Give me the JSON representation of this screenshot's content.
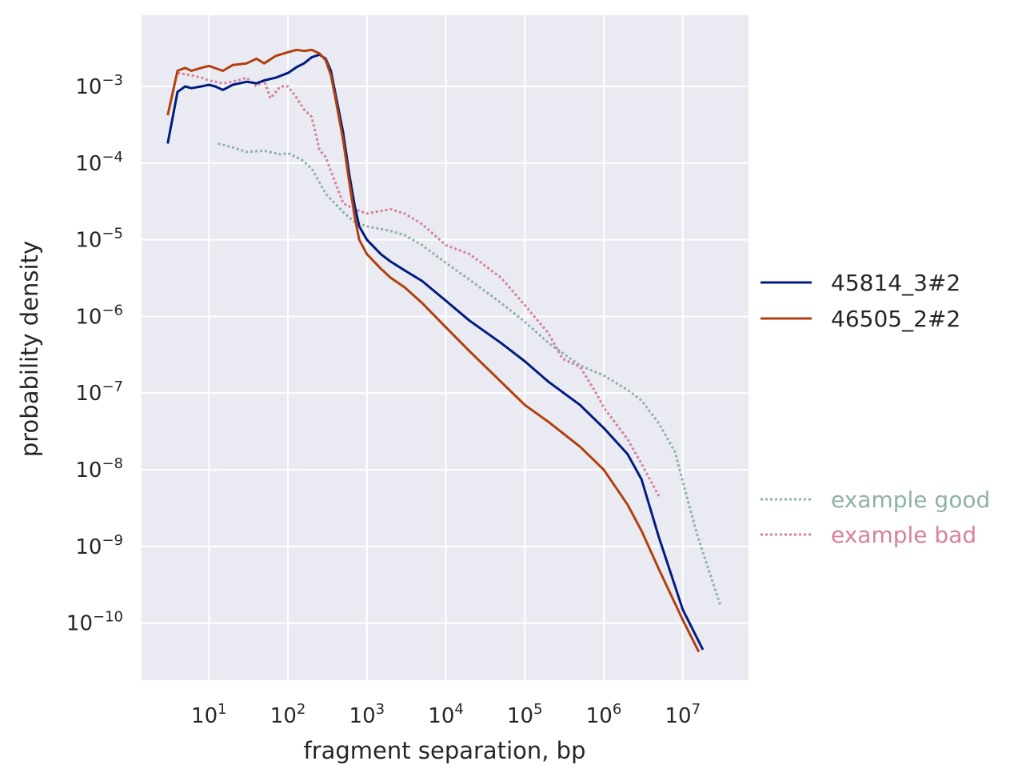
{
  "chart_data": {
    "type": "line",
    "title": "",
    "xlabel": "fragment separation, bp",
    "ylabel": "probability density",
    "xscale": "log",
    "yscale": "log",
    "xlim": [
      1.4,
      68000000
    ],
    "ylim": [
      1.8e-11,
      0.0085
    ],
    "grid": true,
    "x_ticks": [
      {
        "base": "10",
        "exp": "1",
        "value": 10
      },
      {
        "base": "10",
        "exp": "2",
        "value": 100
      },
      {
        "base": "10",
        "exp": "3",
        "value": 1000
      },
      {
        "base": "10",
        "exp": "4",
        "value": 10000
      },
      {
        "base": "10",
        "exp": "5",
        "value": 100000
      },
      {
        "base": "10",
        "exp": "6",
        "value": 1000000
      },
      {
        "base": "10",
        "exp": "7",
        "value": 10000000
      }
    ],
    "y_ticks": [
      {
        "base": "10",
        "exp": "−3",
        "value": 0.001
      },
      {
        "base": "10",
        "exp": "−4",
        "value": 0.0001
      },
      {
        "base": "10",
        "exp": "−5",
        "value": 1e-05
      },
      {
        "base": "10",
        "exp": "−6",
        "value": 1e-06
      },
      {
        "base": "10",
        "exp": "−7",
        "value": 1e-07
      },
      {
        "base": "10",
        "exp": "−8",
        "value": 1e-08
      },
      {
        "base": "10",
        "exp": "−9",
        "value": 1e-09
      },
      {
        "base": "10",
        "exp": "−10",
        "value": 1e-10
      }
    ],
    "legend_main_placement": "right-middle",
    "legend_examples_placement": "right-lower",
    "series": [
      {
        "name": "45814_3#2",
        "group": "main",
        "color": "#001c7f",
        "style": "solid",
        "points": [
          [
            3,
            0.00018
          ],
          [
            4,
            0.00085
          ],
          [
            5,
            0.001
          ],
          [
            6,
            0.00095
          ],
          [
            8,
            0.001
          ],
          [
            10,
            0.00105
          ],
          [
            12,
            0.001
          ],
          [
            15,
            0.0009
          ],
          [
            20,
            0.00105
          ],
          [
            30,
            0.00115
          ],
          [
            40,
            0.0011
          ],
          [
            50,
            0.0012
          ],
          [
            70,
            0.0013
          ],
          [
            100,
            0.0015
          ],
          [
            130,
            0.0018
          ],
          [
            160,
            0.002
          ],
          [
            200,
            0.0024
          ],
          [
            250,
            0.0026
          ],
          [
            300,
            0.0023
          ],
          [
            350,
            0.0016
          ],
          [
            400,
            0.0008
          ],
          [
            500,
            0.00025
          ],
          [
            600,
            7e-05
          ],
          [
            700,
            2.8e-05
          ],
          [
            800,
            1.5e-05
          ],
          [
            1000,
            1e-05
          ],
          [
            1500,
            6.5e-06
          ],
          [
            2000,
            5.2e-06
          ],
          [
            3000,
            4e-06
          ],
          [
            5000,
            2.9e-06
          ],
          [
            10000,
            1.6e-06
          ],
          [
            20000,
            8.8e-07
          ],
          [
            50000,
            4.5e-07
          ],
          [
            100000,
            2.6e-07
          ],
          [
            200000,
            1.4e-07
          ],
          [
            500000,
            7e-08
          ],
          [
            1000000,
            3.5e-08
          ],
          [
            2000000,
            1.6e-08
          ],
          [
            3000000,
            7.5e-09
          ],
          [
            5000000,
            1.3e-09
          ],
          [
            10000000,
            1.5e-10
          ],
          [
            18000000,
            4.5e-11
          ]
        ]
      },
      {
        "name": "46505_2#2",
        "group": "main",
        "color": "#b1400d",
        "style": "solid",
        "points": [
          [
            3,
            0.00042
          ],
          [
            4,
            0.0016
          ],
          [
            5,
            0.00175
          ],
          [
            6,
            0.0016
          ],
          [
            8,
            0.00175
          ],
          [
            10,
            0.00185
          ],
          [
            15,
            0.0016
          ],
          [
            20,
            0.0019
          ],
          [
            30,
            0.002
          ],
          [
            40,
            0.0023
          ],
          [
            50,
            0.002
          ],
          [
            70,
            0.0025
          ],
          [
            100,
            0.0028
          ],
          [
            130,
            0.003
          ],
          [
            160,
            0.0029
          ],
          [
            200,
            0.003
          ],
          [
            250,
            0.0027
          ],
          [
            300,
            0.0022
          ],
          [
            350,
            0.0014
          ],
          [
            400,
            0.0007
          ],
          [
            500,
            0.0002
          ],
          [
            600,
            5.5e-05
          ],
          [
            700,
            2e-05
          ],
          [
            800,
            1e-05
          ],
          [
            1000,
            6.5e-06
          ],
          [
            1500,
            4.2e-06
          ],
          [
            2000,
            3.2e-06
          ],
          [
            3000,
            2.4e-06
          ],
          [
            5000,
            1.5e-06
          ],
          [
            10000,
            7.2e-07
          ],
          [
            20000,
            3.5e-07
          ],
          [
            50000,
            1.4e-07
          ],
          [
            100000,
            7e-08
          ],
          [
            200000,
            4.2e-08
          ],
          [
            500000,
            2e-08
          ],
          [
            1000000,
            1e-08
          ],
          [
            2000000,
            3.5e-09
          ],
          [
            3000000,
            1.6e-09
          ],
          [
            5000000,
            5e-10
          ],
          [
            10000000,
            1.1e-10
          ],
          [
            16000000,
            4.2e-11
          ]
        ]
      },
      {
        "name": "example good",
        "group": "examples",
        "color": "#8eb1aa",
        "style": "dotted",
        "points": [
          [
            13,
            0.00018
          ],
          [
            20,
            0.00016
          ],
          [
            30,
            0.00014
          ],
          [
            50,
            0.000145
          ],
          [
            80,
            0.00013
          ],
          [
            100,
            0.000135
          ],
          [
            150,
            0.00011
          ],
          [
            200,
            8.5e-05
          ],
          [
            300,
            4e-05
          ],
          [
            500,
            2.3e-05
          ],
          [
            700,
            1.7e-05
          ],
          [
            1000,
            1.5e-05
          ],
          [
            2000,
            1.3e-05
          ],
          [
            3000,
            1.15e-05
          ],
          [
            5000,
            8.5e-06
          ],
          [
            10000,
            5e-06
          ],
          [
            20000,
            3e-06
          ],
          [
            50000,
            1.5e-06
          ],
          [
            100000,
            8.5e-07
          ],
          [
            200000,
            4.5e-07
          ],
          [
            500000,
            2.3e-07
          ],
          [
            1000000,
            1.7e-07
          ],
          [
            2000000,
            1.1e-07
          ],
          [
            3000000,
            8e-08
          ],
          [
            5000000,
            4e-08
          ],
          [
            8000000,
            1.7e-08
          ],
          [
            10000000,
            7e-09
          ],
          [
            15000000,
            1.5e-09
          ],
          [
            20000000,
            6e-10
          ],
          [
            30000000,
            1.7e-10
          ]
        ]
      },
      {
        "name": "example bad",
        "group": "examples",
        "color": "#d5819e",
        "style": "dotted",
        "points": [
          [
            4,
            0.0015
          ],
          [
            6,
            0.0014
          ],
          [
            8,
            0.0013
          ],
          [
            10,
            0.0012
          ],
          [
            15,
            0.0011
          ],
          [
            20,
            0.00115
          ],
          [
            30,
            0.0013
          ],
          [
            40,
            0.001
          ],
          [
            50,
            0.0012
          ],
          [
            60,
            0.0007
          ],
          [
            80,
            0.001
          ],
          [
            100,
            0.001
          ],
          [
            130,
            0.0007
          ],
          [
            160,
            0.0005
          ],
          [
            200,
            0.0004
          ],
          [
            250,
            0.00015
          ],
          [
            300,
            0.00012
          ],
          [
            400,
            5.5e-05
          ],
          [
            500,
            3e-05
          ],
          [
            700,
            2.5e-05
          ],
          [
            1000,
            2.2e-05
          ],
          [
            2000,
            2.5e-05
          ],
          [
            3000,
            2.2e-05
          ],
          [
            5000,
            1.6e-05
          ],
          [
            10000,
            8.5e-06
          ],
          [
            20000,
            6.5e-06
          ],
          [
            50000,
            3.2e-06
          ],
          [
            100000,
            1.4e-06
          ],
          [
            200000,
            6e-07
          ],
          [
            300000,
            2.8e-07
          ],
          [
            500000,
            2.2e-07
          ],
          [
            800000,
            1e-07
          ],
          [
            1000000,
            6.5e-08
          ],
          [
            2000000,
            2.5e-08
          ],
          [
            3000000,
            1.2e-08
          ],
          [
            5000000,
            4.5e-09
          ]
        ]
      }
    ]
  }
}
